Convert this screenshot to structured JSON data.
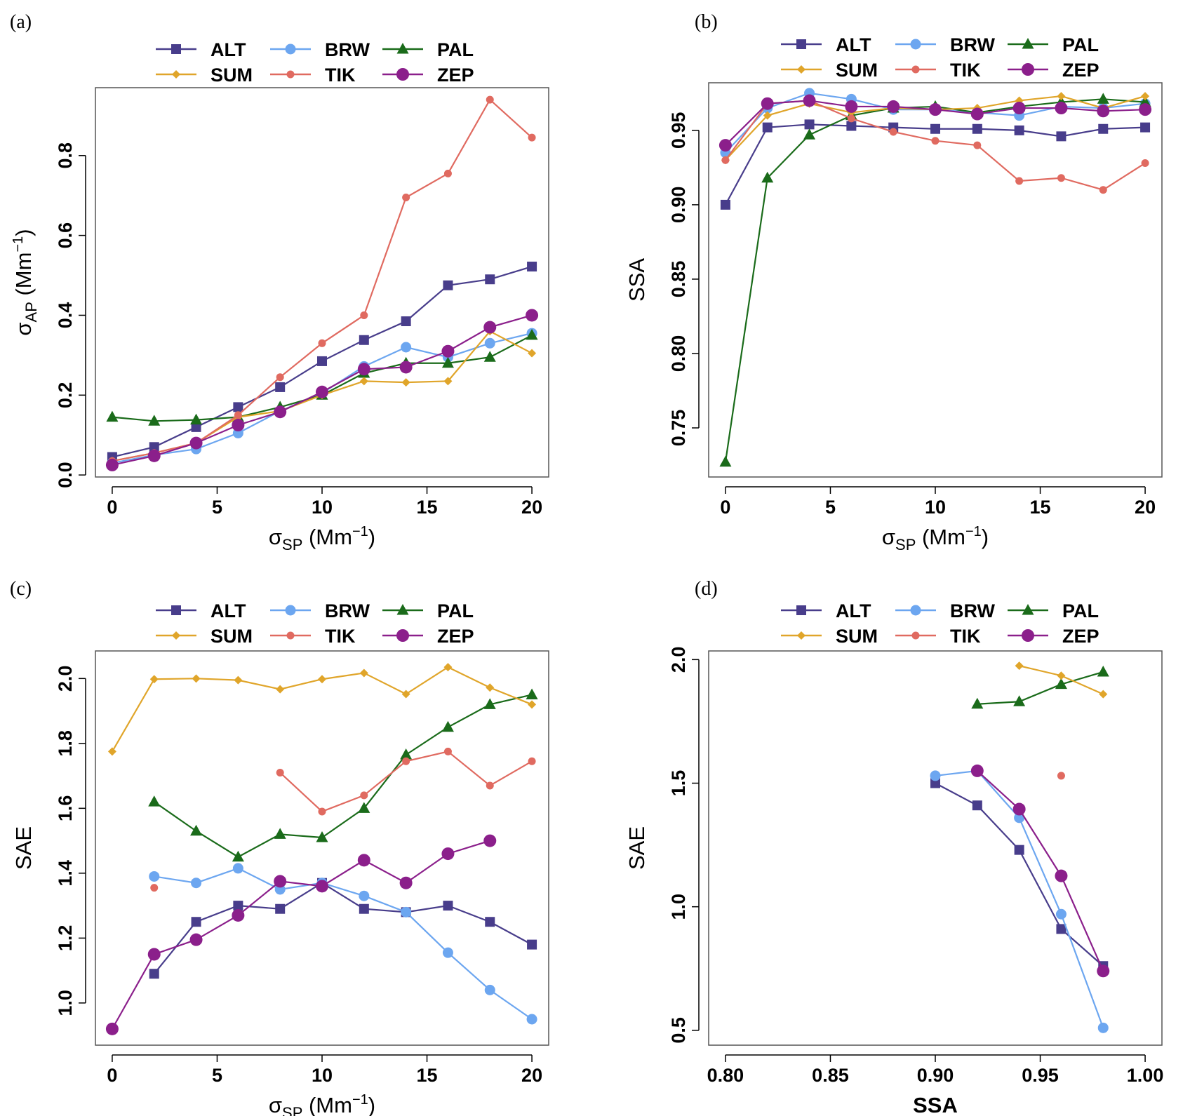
{
  "colors": {
    "ALT": "#483d8b",
    "BRW": "#6ca6f0",
    "PAL": "#1a6b1a",
    "SUM": "#e0a52a",
    "TIK": "#e06a60",
    "ZEP": "#8b1f8b"
  },
  "legend": [
    {
      "name": "ALT",
      "marker": "square"
    },
    {
      "name": "BRW",
      "marker": "circle"
    },
    {
      "name": "PAL",
      "marker": "triangle"
    },
    {
      "name": "SUM",
      "marker": "diamond"
    },
    {
      "name": "TIK",
      "marker": "smallcircle"
    },
    {
      "name": "ZEP",
      "marker": "bigcircle"
    }
  ],
  "chart_data": [
    {
      "id": "a",
      "panel_label": "(a)",
      "type": "line",
      "xlabel": "σSP (Mm⁻¹)",
      "ylabel": "σAP (Mm⁻¹)",
      "xlim": [
        -0.8,
        20.8
      ],
      "ylim": [
        -0.005,
        0.97
      ],
      "xticks": [
        0,
        5,
        10,
        15,
        20
      ],
      "xtick_labels": [
        "0",
        "5",
        "10",
        "15",
        "20"
      ],
      "yticks": [
        0.0,
        0.2,
        0.4,
        0.6,
        0.8
      ],
      "ytick_labels": [
        "0.0",
        "0.2",
        "0.4",
        "0.6",
        "0.8"
      ],
      "x": [
        0,
        2,
        4,
        6,
        8,
        10,
        12,
        14,
        16,
        18,
        20
      ],
      "series": [
        {
          "name": "ALT",
          "values": [
            0.045,
            0.07,
            0.12,
            0.17,
            0.22,
            0.285,
            0.338,
            0.385,
            0.475,
            0.49,
            0.522
          ]
        },
        {
          "name": "BRW",
          "values": [
            0.03,
            0.05,
            0.065,
            0.105,
            0.16,
            0.205,
            0.272,
            0.32,
            0.295,
            0.33,
            0.355
          ]
        },
        {
          "name": "PAL",
          "values": [
            0.145,
            0.135,
            0.138,
            0.145,
            0.17,
            0.2,
            0.255,
            0.28,
            0.28,
            0.295,
            0.35
          ]
        },
        {
          "name": "SUM",
          "values": [
            0.035,
            0.055,
            0.08,
            0.145,
            0.16,
            0.2,
            0.235,
            0.232,
            0.235,
            0.36,
            0.305
          ]
        },
        {
          "name": "TIK",
          "values": [
            0.035,
            0.055,
            0.08,
            0.15,
            0.245,
            0.33,
            0.4,
            0.695,
            0.755,
            0.94,
            0.845
          ]
        },
        {
          "name": "ZEP",
          "values": [
            0.025,
            0.048,
            0.08,
            0.125,
            0.158,
            0.208,
            0.265,
            0.27,
            0.31,
            0.37,
            0.4
          ]
        }
      ]
    },
    {
      "id": "b",
      "panel_label": "(b)",
      "type": "line",
      "xlabel": "σSP (Mm⁻¹)",
      "ylabel": "SSA",
      "xlim": [
        -0.8,
        20.8
      ],
      "ylim": [
        0.717,
        0.982
      ],
      "xticks": [
        0,
        5,
        10,
        15,
        20
      ],
      "xtick_labels": [
        "0",
        "5",
        "10",
        "15",
        "20"
      ],
      "yticks": [
        0.75,
        0.8,
        0.85,
        0.9,
        0.95
      ],
      "ytick_labels": [
        "0.75",
        "0.80",
        "0.85",
        "0.90",
        "0.95"
      ],
      "x": [
        0,
        2,
        4,
        6,
        8,
        10,
        12,
        14,
        16,
        18,
        20
      ],
      "series": [
        {
          "name": "ALT",
          "values": [
            0.9,
            0.952,
            0.954,
            0.953,
            0.952,
            0.951,
            0.951,
            0.95,
            0.946,
            0.951,
            0.952
          ]
        },
        {
          "name": "BRW",
          "values": [
            0.935,
            0.965,
            0.975,
            0.971,
            0.964,
            0.964,
            0.962,
            0.96,
            0.966,
            0.965,
            0.968
          ]
        },
        {
          "name": "PAL",
          "values": [
            0.727,
            0.918,
            0.947,
            0.96,
            0.965,
            0.966,
            0.962,
            0.966,
            0.969,
            0.971,
            0.969
          ]
        },
        {
          "name": "SUM",
          "values": [
            0.93,
            0.96,
            0.968,
            0.962,
            0.965,
            0.964,
            0.965,
            0.97,
            0.973,
            0.965,
            0.973
          ]
        },
        {
          "name": "TIK",
          "values": [
            0.93,
            0.968,
            0.97,
            0.958,
            0.949,
            0.943,
            0.94,
            0.916,
            0.918,
            0.91,
            0.928
          ]
        },
        {
          "name": "ZEP",
          "values": [
            0.94,
            0.968,
            0.97,
            0.966,
            0.966,
            0.964,
            0.961,
            0.965,
            0.965,
            0.963,
            0.964
          ]
        }
      ]
    },
    {
      "id": "c",
      "panel_label": "(c)",
      "type": "line",
      "xlabel": "σSP (Mm⁻¹)",
      "ylabel": "SAE",
      "xlim": [
        -0.8,
        20.8
      ],
      "ylim": [
        0.87,
        2.085
      ],
      "xticks": [
        0,
        5,
        10,
        15,
        20
      ],
      "xtick_labels": [
        "0",
        "5",
        "10",
        "15",
        "20"
      ],
      "yticks": [
        1.0,
        1.2,
        1.4,
        1.6,
        1.8,
        2.0
      ],
      "ytick_labels": [
        "1.0",
        "1.2",
        "1.4",
        "1.6",
        "1.8",
        "2.0"
      ],
      "x": [
        0,
        2,
        4,
        6,
        8,
        10,
        12,
        14,
        16,
        18,
        20
      ],
      "series": [
        {
          "name": "ALT",
          "values": [
            null,
            1.09,
            1.25,
            1.3,
            1.29,
            1.37,
            1.29,
            1.28,
            1.3,
            1.25,
            1.18
          ]
        },
        {
          "name": "BRW",
          "values": [
            null,
            1.39,
            1.37,
            1.415,
            1.35,
            1.37,
            1.33,
            1.28,
            1.155,
            1.04,
            0.95
          ]
        },
        {
          "name": "PAL",
          "values": [
            null,
            1.62,
            1.53,
            1.45,
            1.52,
            1.51,
            1.6,
            1.765,
            1.85,
            1.92,
            1.95
          ]
        },
        {
          "name": "SUM",
          "values": [
            1.775,
            1.998,
            2.0,
            1.995,
            1.967,
            1.998,
            2.017,
            1.952,
            2.035,
            1.972,
            1.92
          ]
        },
        {
          "name": "TIK",
          "values": [
            null,
            1.355,
            null,
            null,
            1.71,
            1.59,
            1.64,
            1.745,
            1.775,
            1.67,
            1.745
          ]
        },
        {
          "name": "ZEP",
          "values": [
            0.92,
            1.15,
            1.195,
            1.27,
            1.375,
            1.36,
            1.44,
            1.37,
            1.46,
            1.5,
            null
          ]
        }
      ]
    },
    {
      "id": "d",
      "panel_label": "(d)",
      "type": "line",
      "xlabel": "SSA",
      "ylabel": "SAE",
      "xlim": [
        0.792,
        1.008
      ],
      "ylim": [
        0.44,
        2.035
      ],
      "xticks": [
        0.8,
        0.85,
        0.9,
        0.95,
        1.0
      ],
      "xtick_labels": [
        "0.80",
        "0.85",
        "0.90",
        "0.95",
        "1.00"
      ],
      "yticks": [
        0.5,
        1.0,
        1.5,
        2.0
      ],
      "ytick_labels": [
        "0.5",
        "1.0",
        "1.5",
        "2.0"
      ],
      "x": [
        0.9,
        0.92,
        0.94,
        0.96,
        0.98
      ],
      "series": [
        {
          "name": "ALT",
          "values": [
            1.5,
            1.41,
            1.23,
            0.91,
            0.76
          ]
        },
        {
          "name": "BRW",
          "values": [
            1.53,
            1.55,
            1.36,
            0.97,
            0.51
          ]
        },
        {
          "name": "PAL",
          "values": [
            null,
            1.82,
            1.83,
            1.9,
            1.95
          ]
        },
        {
          "name": "SUM",
          "values": [
            null,
            null,
            1.975,
            1.935,
            1.86
          ]
        },
        {
          "name": "TIK",
          "values": [
            null,
            null,
            null,
            1.53,
            null
          ]
        },
        {
          "name": "ZEP",
          "values": [
            null,
            1.55,
            1.395,
            1.125,
            0.74
          ]
        }
      ]
    }
  ]
}
